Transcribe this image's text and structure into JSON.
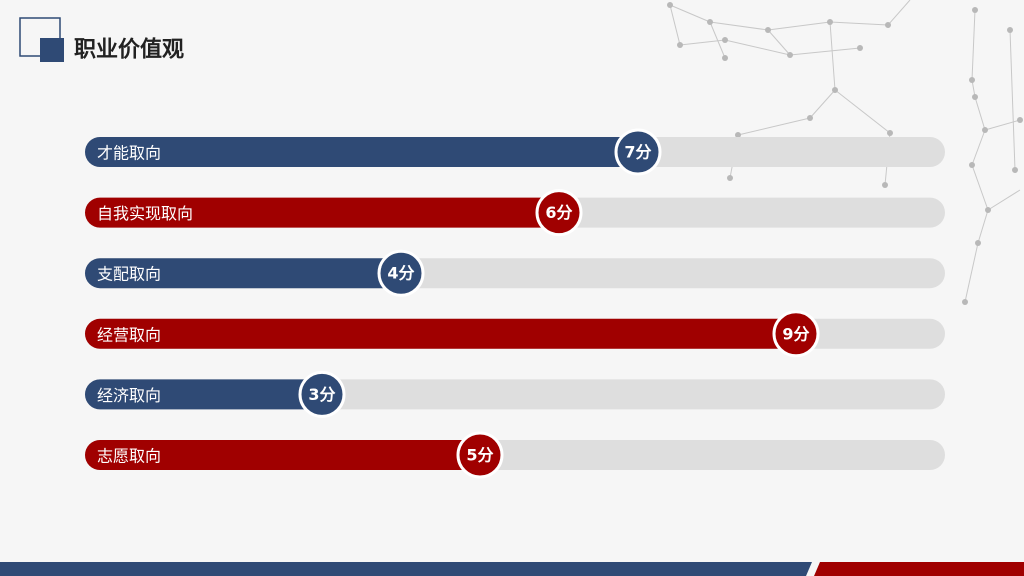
{
  "chart_data": {
    "type": "bar",
    "title": "职业价值观",
    "categories": [
      "才能取向",
      "自我实现取向",
      "支配取向",
      "经营取向",
      "经济取向",
      "志愿取向"
    ],
    "values": [
      7,
      6,
      4,
      9,
      3,
      5
    ],
    "value_labels": [
      "7分",
      "6分",
      "4分",
      "9分",
      "3分",
      "5分"
    ],
    "colors": [
      "#2f4a75",
      "#a00000",
      "#2f4a75",
      "#a00000",
      "#2f4a75",
      "#a00000"
    ]
  }
}
